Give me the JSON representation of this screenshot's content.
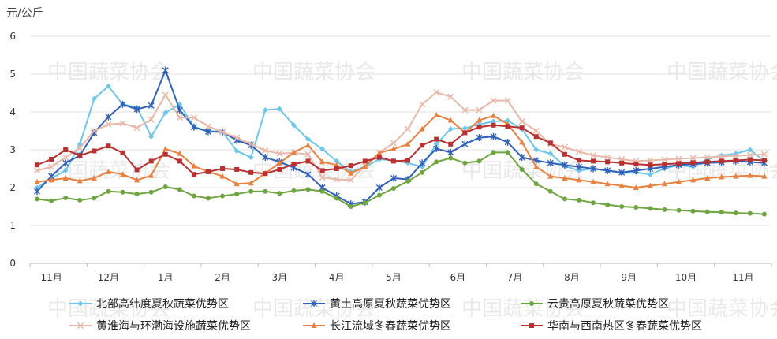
{
  "chart_data": {
    "type": "line",
    "unit_label": "元/公斤",
    "watermark": "中国蔬菜协会",
    "ylim": [
      0,
      6
    ],
    "yticks": [
      "0",
      "1",
      "2",
      "3",
      "4",
      "5",
      "6"
    ],
    "month_labels": [
      {
        "label": "11月",
        "index": 1
      },
      {
        "label": "12月",
        "index": 5
      },
      {
        "label": "1月",
        "index": 9
      },
      {
        "label": "2月",
        "index": 13
      },
      {
        "label": "3月",
        "index": 17
      },
      {
        "label": "4月",
        "index": 21
      },
      {
        "label": "5月",
        "index": 25
      },
      {
        "label": "6月",
        "index": 29.5
      },
      {
        "label": "7月",
        "index": 33.5
      },
      {
        "label": "8月",
        "index": 37.5
      },
      {
        "label": "9月",
        "index": 41.5
      },
      {
        "label": "10月",
        "index": 45.5
      },
      {
        "label": "11月",
        "index": 49.5
      }
    ],
    "point_count": 52,
    "grid": true,
    "legend_position": "bottom",
    "series": [
      {
        "name": "北部高纬度夏秋蔬菜优势区",
        "color": "#6ec6ea",
        "marker": "diamond",
        "values": [
          2.0,
          2.25,
          2.45,
          3.15,
          4.35,
          4.68,
          4.2,
          4.12,
          3.35,
          3.98,
          4.2,
          3.6,
          3.5,
          3.48,
          2.97,
          2.8,
          4.05,
          4.08,
          3.65,
          3.28,
          3.02,
          2.7,
          2.42,
          2.55,
          2.75,
          2.72,
          2.65,
          2.55,
          3.15,
          3.55,
          3.57,
          3.67,
          3.75,
          3.77,
          3.55,
          3.0,
          2.9,
          2.57,
          2.45,
          2.5,
          2.45,
          2.38,
          2.4,
          2.35,
          2.5,
          2.6,
          2.55,
          2.75,
          2.85,
          2.9,
          3.0,
          2.7
        ]
      },
      {
        "name": "黄土高原夏秋蔬菜优势区",
        "color": "#3060b8",
        "marker": "star",
        "values": [
          1.9,
          2.3,
          2.65,
          2.85,
          3.45,
          3.87,
          4.2,
          4.07,
          4.17,
          5.1,
          4.05,
          3.6,
          3.48,
          3.47,
          3.25,
          3.12,
          2.8,
          2.68,
          2.53,
          2.35,
          2.0,
          1.78,
          1.57,
          1.62,
          2.0,
          2.25,
          2.22,
          2.65,
          3.03,
          2.93,
          3.15,
          3.32,
          3.35,
          3.2,
          2.8,
          2.72,
          2.65,
          2.6,
          2.55,
          2.5,
          2.45,
          2.4,
          2.45,
          2.5,
          2.55,
          2.6,
          2.62,
          2.65,
          2.67,
          2.7,
          2.68,
          2.65
        ]
      },
      {
        "name": "云贵高原夏秋蔬菜优势区",
        "color": "#6fa540",
        "marker": "circle",
        "values": [
          1.7,
          1.65,
          1.73,
          1.67,
          1.72,
          1.9,
          1.88,
          1.83,
          1.88,
          2.02,
          1.95,
          1.78,
          1.72,
          1.78,
          1.83,
          1.9,
          1.9,
          1.85,
          1.92,
          1.95,
          1.9,
          1.72,
          1.5,
          1.6,
          1.8,
          1.98,
          2.17,
          2.4,
          2.68,
          2.78,
          2.65,
          2.7,
          2.93,
          2.93,
          2.48,
          2.1,
          1.9,
          1.7,
          1.67,
          1.6,
          1.55,
          1.5,
          1.48,
          1.45,
          1.42,
          1.4,
          1.38,
          1.36,
          1.35,
          1.33,
          1.32,
          1.3
        ]
      },
      {
        "name": "黄淮海与环渤海设施蔬菜优势区",
        "color": "#e8b8a8",
        "marker": "cross",
        "values": [
          2.45,
          2.55,
          2.8,
          3.05,
          3.5,
          3.67,
          3.7,
          3.58,
          3.8,
          4.45,
          3.85,
          3.85,
          3.62,
          3.47,
          3.32,
          3.15,
          2.98,
          2.9,
          2.92,
          2.88,
          2.27,
          2.22,
          2.2,
          2.58,
          2.92,
          3.18,
          3.55,
          4.2,
          4.52,
          4.4,
          4.05,
          4.05,
          4.3,
          4.3,
          3.75,
          3.5,
          3.15,
          3.07,
          2.95,
          2.85,
          2.8,
          2.75,
          2.7,
          2.72,
          2.74,
          2.76,
          2.78,
          2.8,
          2.82,
          2.84,
          2.86,
          2.88
        ]
      },
      {
        "name": "长江流域冬春蔬菜优势区",
        "color": "#e88040",
        "marker": "triangle",
        "values": [
          2.15,
          2.2,
          2.25,
          2.18,
          2.25,
          2.42,
          2.35,
          2.2,
          2.32,
          3.02,
          2.9,
          2.57,
          2.42,
          2.3,
          2.1,
          2.12,
          2.38,
          2.65,
          2.93,
          3.12,
          2.68,
          2.6,
          2.38,
          2.55,
          2.92,
          3.02,
          3.15,
          3.55,
          3.92,
          3.78,
          3.45,
          3.78,
          3.9,
          3.68,
          3.2,
          2.55,
          2.3,
          2.25,
          2.2,
          2.15,
          2.1,
          2.05,
          2.0,
          2.05,
          2.1,
          2.15,
          2.2,
          2.25,
          2.28,
          2.3,
          2.32,
          2.3
        ]
      },
      {
        "name": "华南与西南热区冬春蔬菜优势区",
        "color": "#b83030",
        "marker": "square",
        "values": [
          2.6,
          2.75,
          3.0,
          2.85,
          2.97,
          3.1,
          2.92,
          2.47,
          2.7,
          2.88,
          2.7,
          2.35,
          2.42,
          2.5,
          2.48,
          2.4,
          2.37,
          2.48,
          2.62,
          2.7,
          2.45,
          2.5,
          2.58,
          2.7,
          2.8,
          2.7,
          2.72,
          3.12,
          3.28,
          3.15,
          3.45,
          3.6,
          3.65,
          3.62,
          3.58,
          3.35,
          3.18,
          2.88,
          2.72,
          2.7,
          2.68,
          2.65,
          2.62,
          2.6,
          2.62,
          2.64,
          2.66,
          2.68,
          2.7,
          2.72,
          2.74,
          2.72
        ]
      }
    ]
  }
}
